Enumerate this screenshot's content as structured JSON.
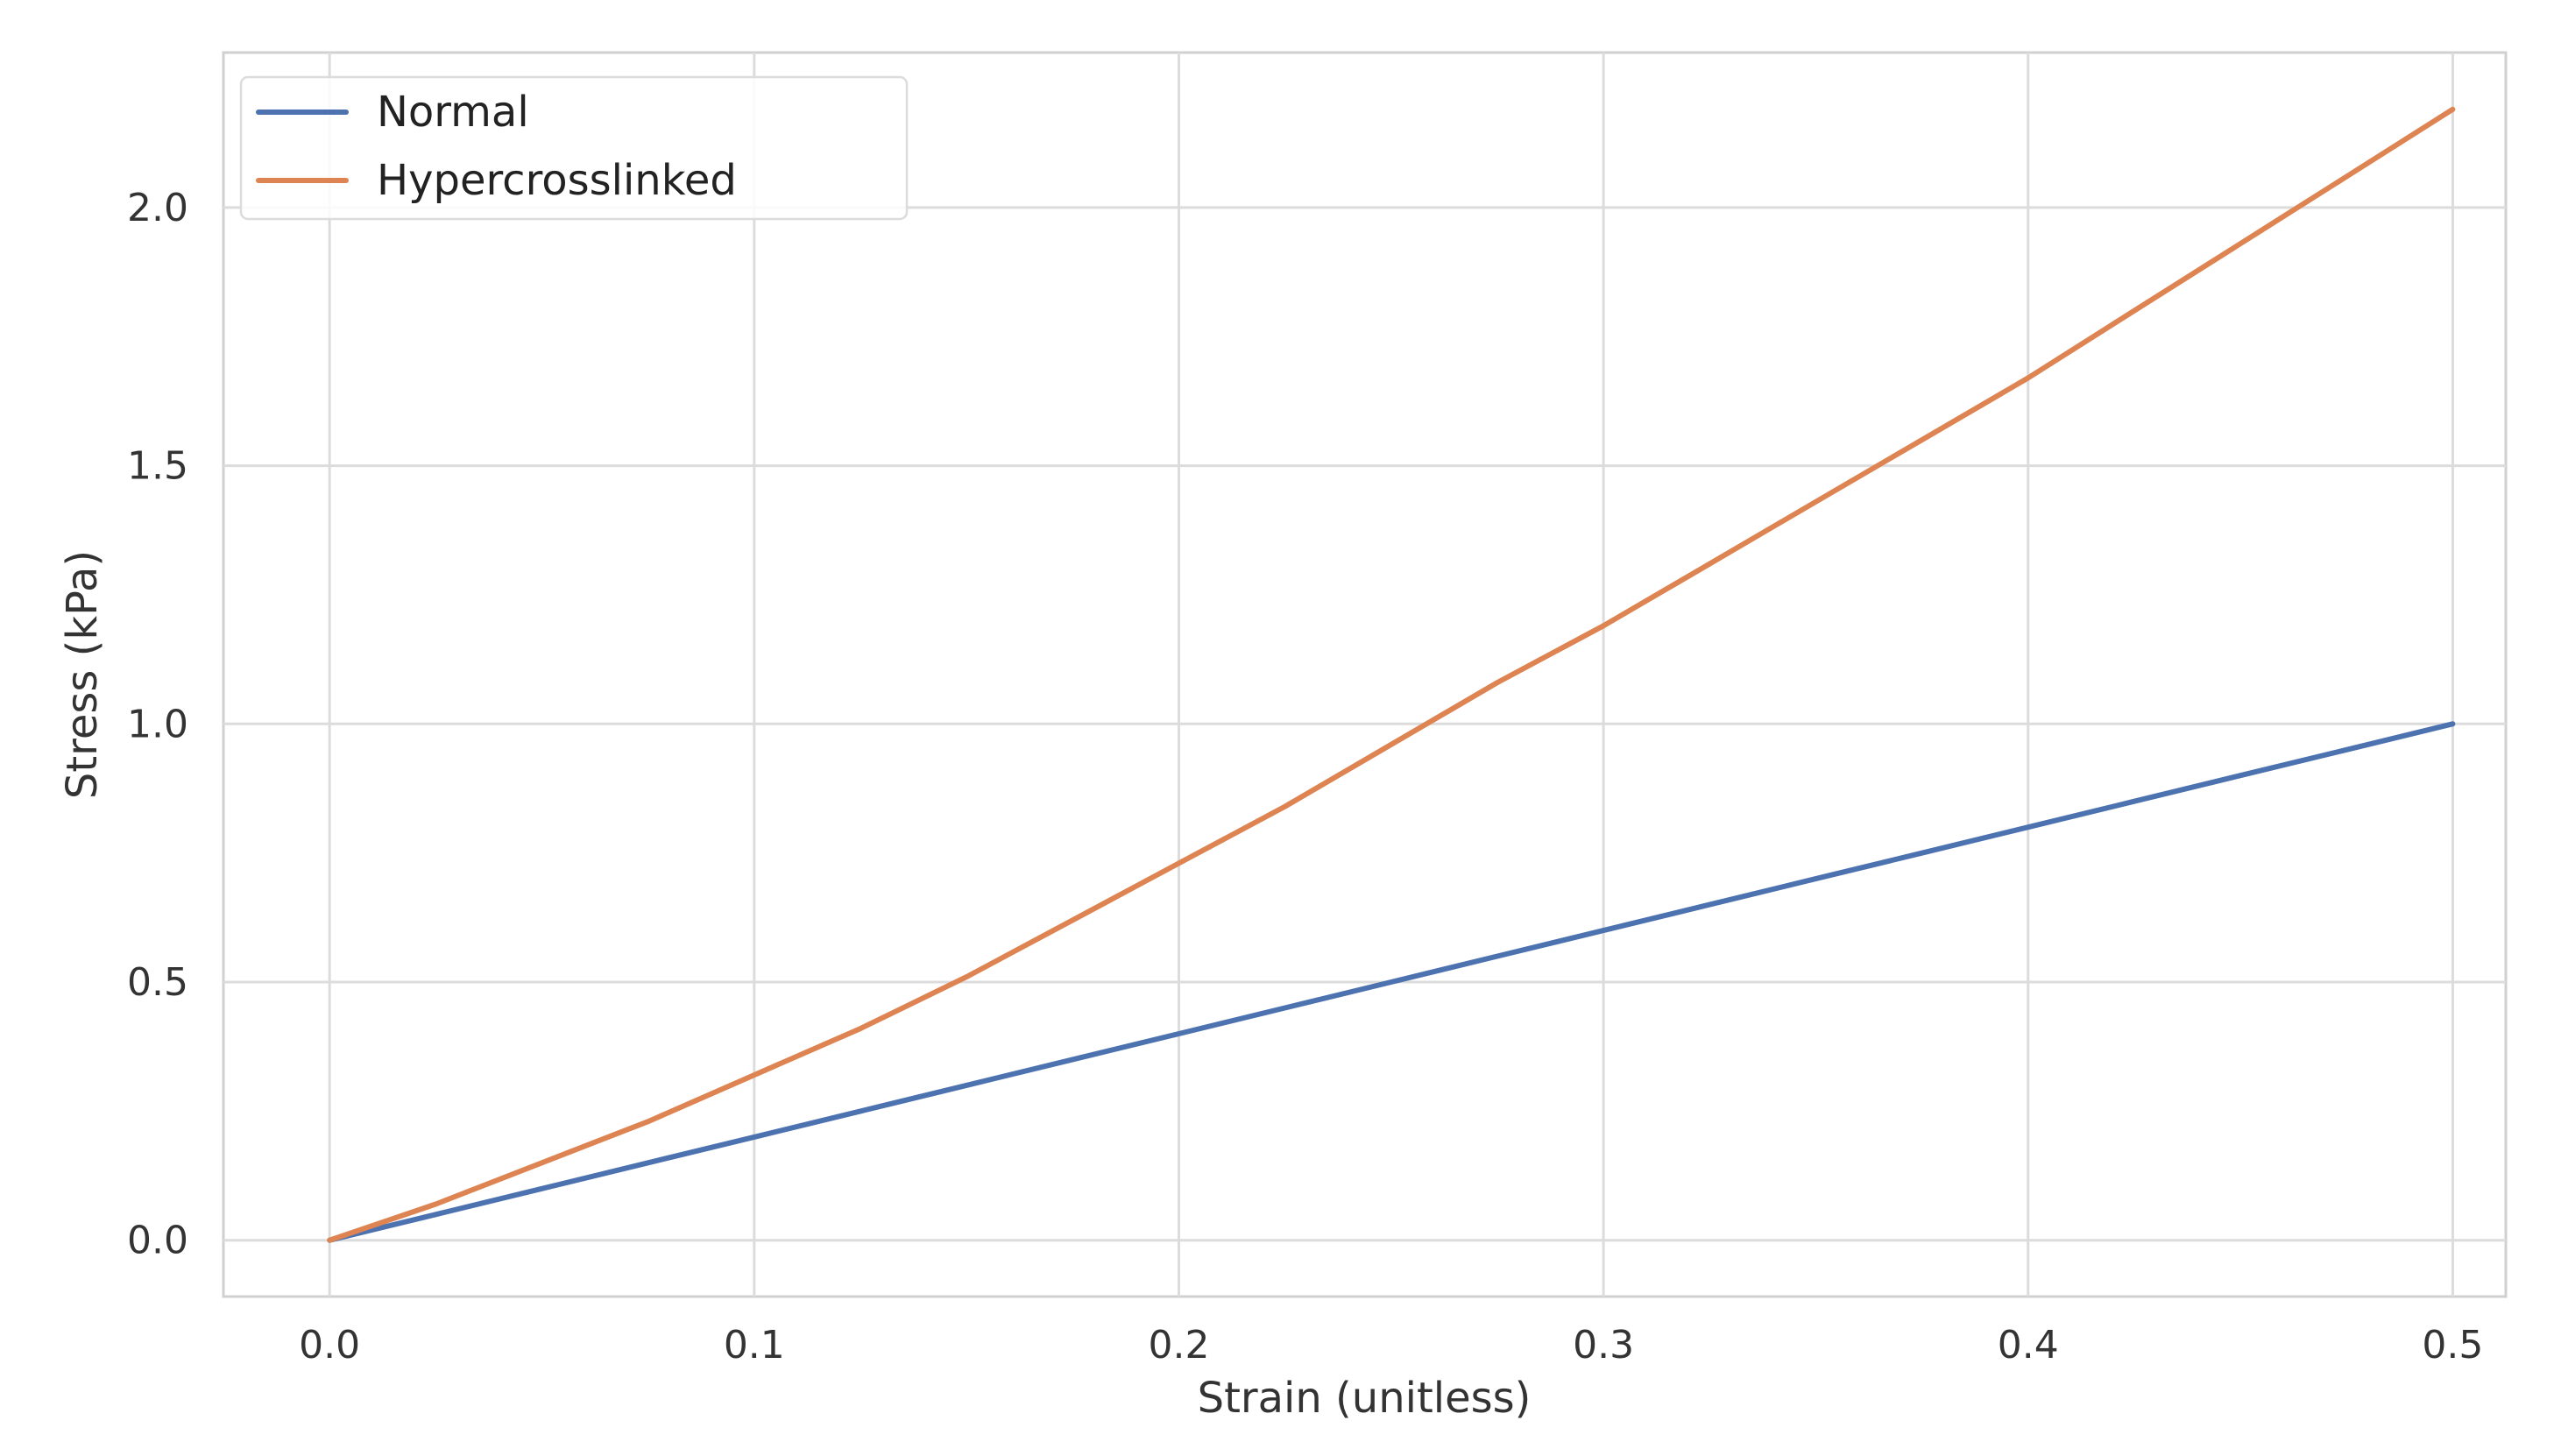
{
  "chart_data": {
    "type": "line",
    "title": "",
    "xlabel": "Strain (unitless)",
    "ylabel": "Stress (kPa)",
    "xlim": [
      -0.025,
      0.5125
    ],
    "ylim": [
      -0.109,
      2.3
    ],
    "x_ticks": [
      0.0,
      0.1,
      0.2,
      0.3,
      0.4,
      0.5
    ],
    "x_tick_labels": [
      "0.0",
      "0.1",
      "0.2",
      "0.3",
      "0.4",
      "0.5"
    ],
    "y_ticks": [
      0.0,
      0.5,
      1.0,
      1.5,
      2.0
    ],
    "y_tick_labels": [
      "0.0",
      "0.5",
      "1.0",
      "1.5",
      "2.0"
    ],
    "grid": true,
    "legend_position": "top-left",
    "x": [
      0.0,
      0.025,
      0.05,
      0.075,
      0.1,
      0.125,
      0.15,
      0.175,
      0.2,
      0.225,
      0.25,
      0.275,
      0.3,
      0.325,
      0.35,
      0.375,
      0.4,
      0.425,
      0.45,
      0.475,
      0.5
    ],
    "series": [
      {
        "name": "Normal",
        "color": "#4c72b0",
        "values": [
          0.0,
          0.05,
          0.1,
          0.15,
          0.2,
          0.25,
          0.3,
          0.35,
          0.4,
          0.45,
          0.5,
          0.55,
          0.6,
          0.65,
          0.7,
          0.75,
          0.8,
          0.85,
          0.9,
          0.95,
          1.0
        ]
      },
      {
        "name": "Hypercrosslinked",
        "color": "#dd8452",
        "values": [
          0.0,
          0.07,
          0.15,
          0.23,
          0.32,
          0.41,
          0.51,
          0.62,
          0.73,
          0.84,
          0.96,
          1.08,
          1.19,
          1.31,
          1.43,
          1.55,
          1.67,
          1.8,
          1.93,
          2.06,
          2.19
        ]
      }
    ]
  }
}
